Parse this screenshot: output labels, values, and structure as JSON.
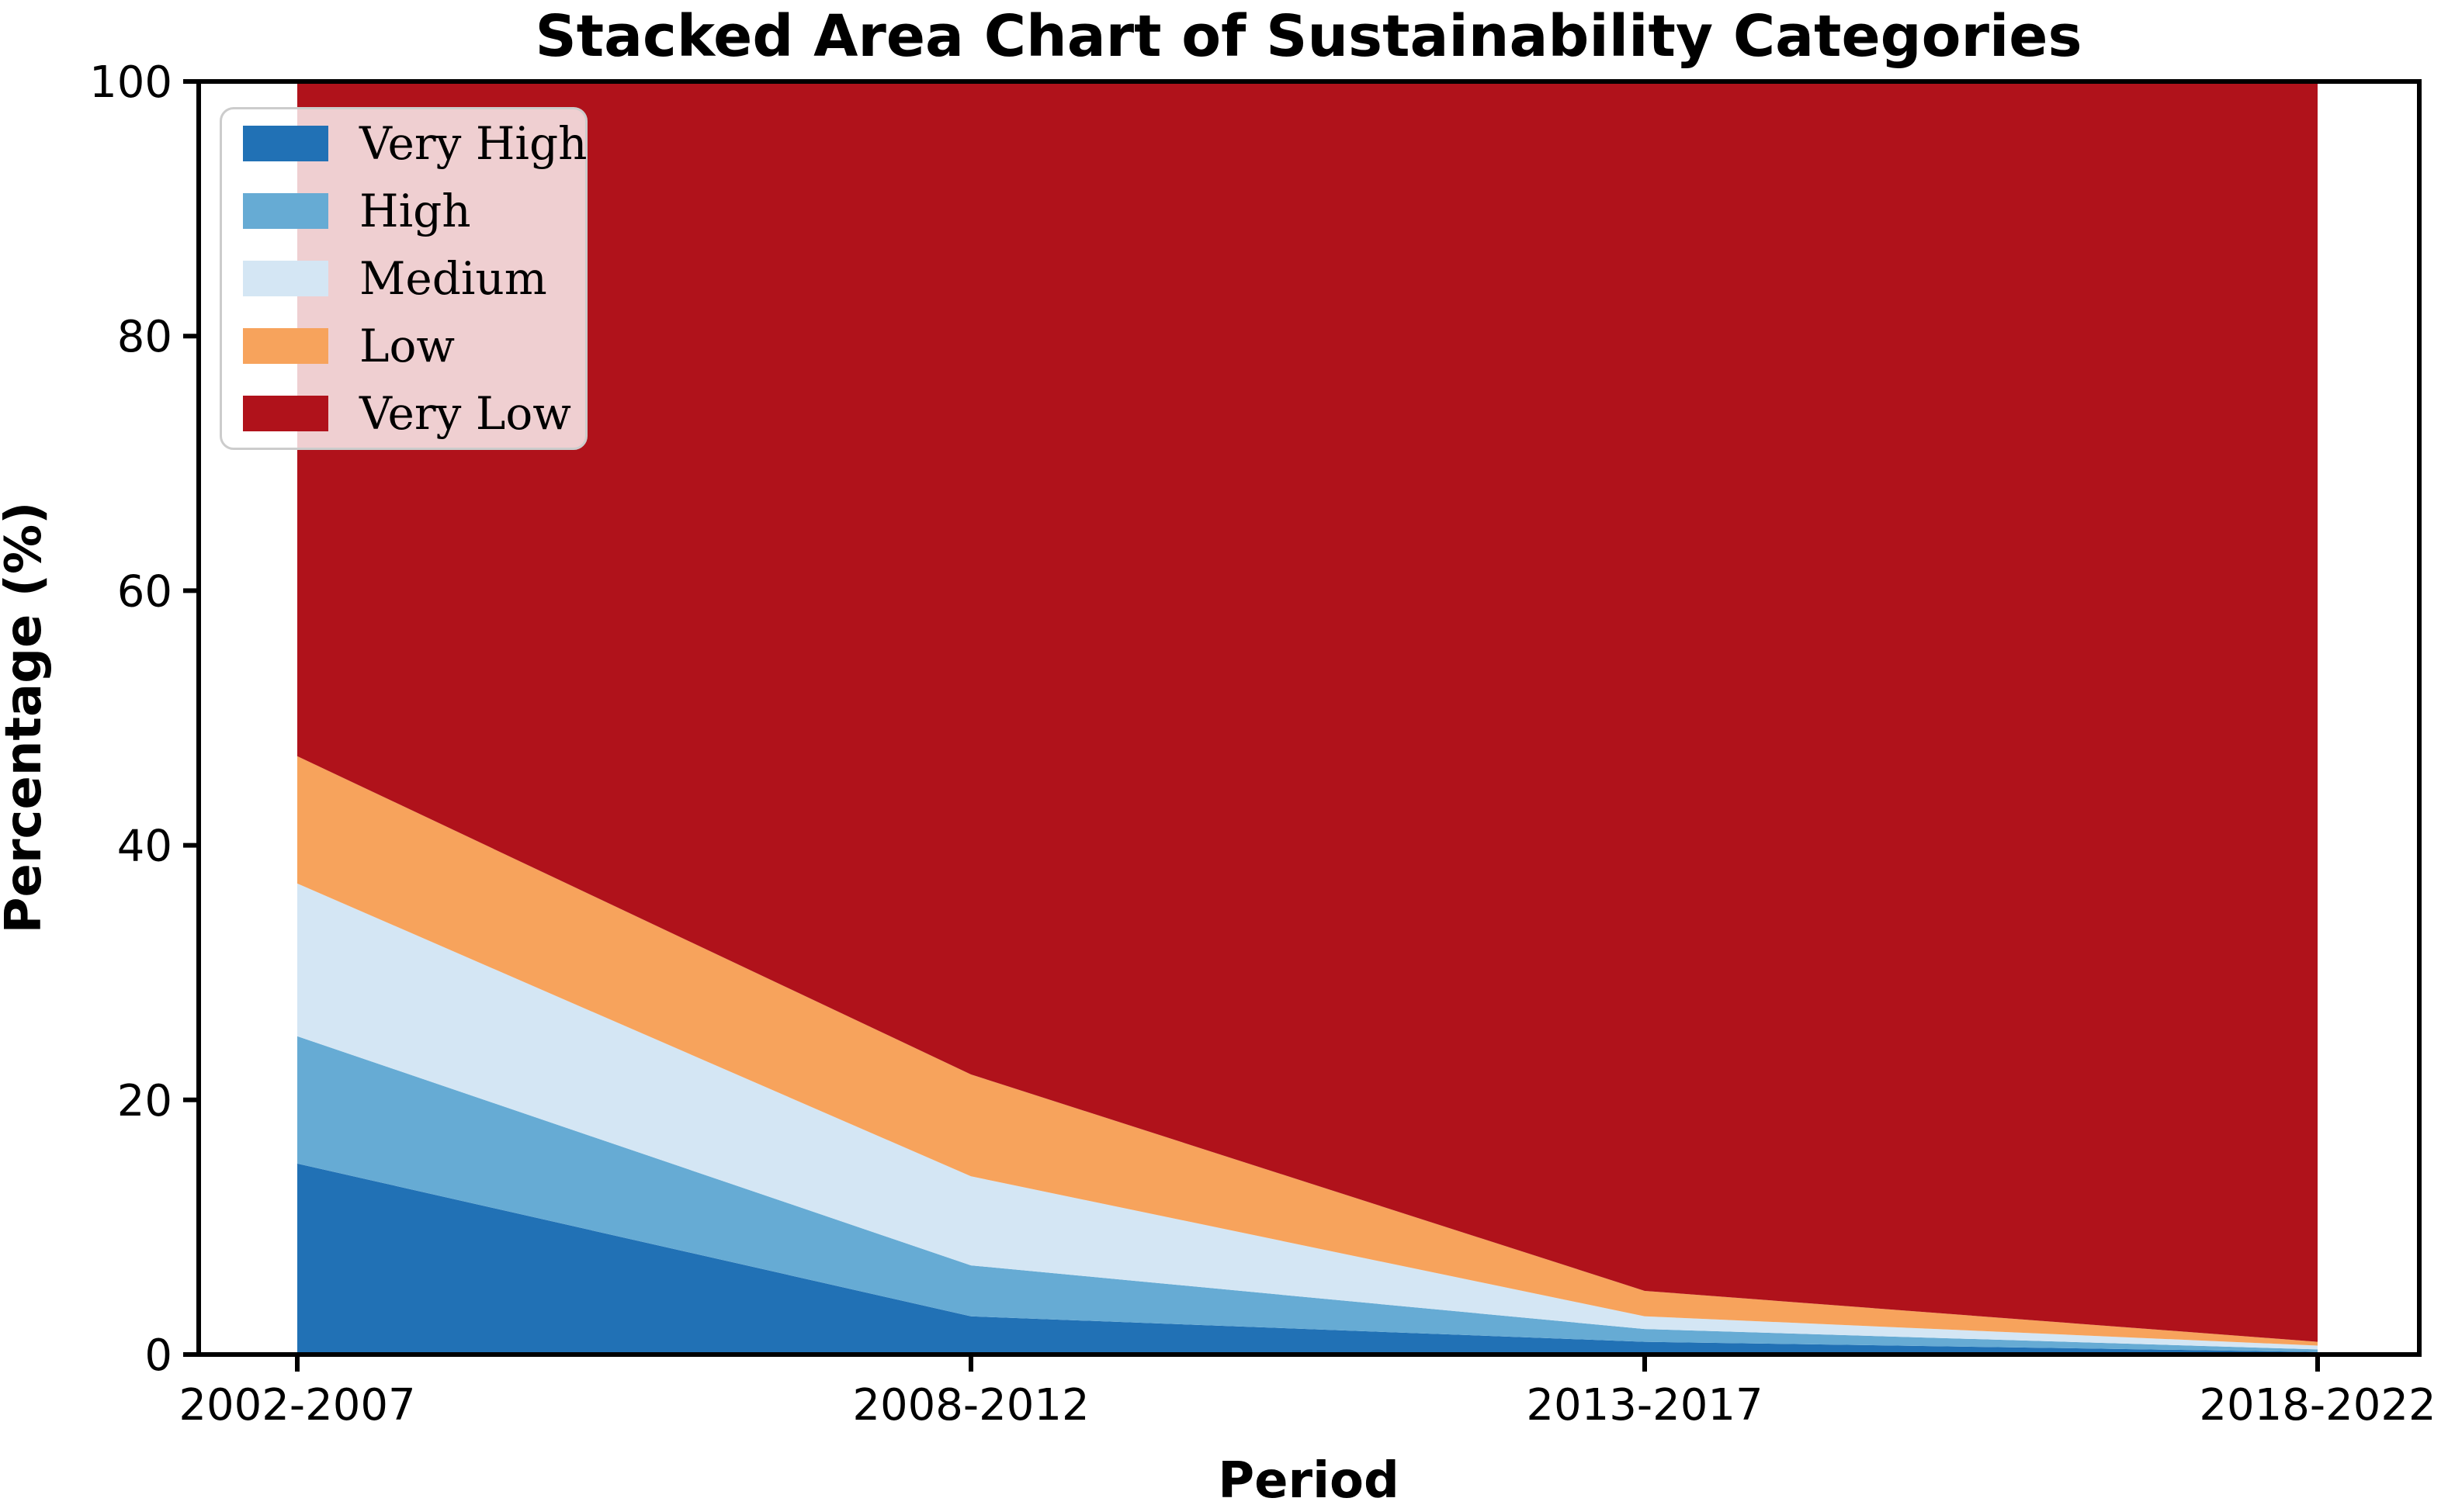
{
  "figure": {
    "title": "Stacked Area Chart of Sustainability Categories"
  },
  "chart_data": {
    "type": "area",
    "stacked": true,
    "title": "Stacked Area Chart of Sustainability Categories",
    "xlabel": "Period",
    "ylabel": "Percentage (%)",
    "categories": [
      "2002-2007",
      "2008-2012",
      "2013-2017",
      "2018-2022"
    ],
    "series": [
      {
        "name": "Very High",
        "color": "#2171b5",
        "values": [
          15,
          3,
          1,
          0.2
        ]
      },
      {
        "name": "High",
        "color": "#66abd4",
        "values": [
          10,
          4,
          1,
          0.2
        ]
      },
      {
        "name": "Medium",
        "color": "#d4e6f4",
        "values": [
          12,
          7,
          1,
          0.3
        ]
      },
      {
        "name": "Low",
        "color": "#f7a35c",
        "values": [
          10,
          8,
          2,
          0.3
        ]
      },
      {
        "name": "Very Low",
        "color": "#b0121b",
        "values": [
          53,
          78,
          95,
          99
        ]
      }
    ],
    "ylim": [
      0,
      100
    ],
    "yticks": [
      0,
      20,
      40,
      60,
      80,
      100
    ],
    "legend_position": "upper left",
    "grid": false,
    "axis_color": "#000000"
  }
}
